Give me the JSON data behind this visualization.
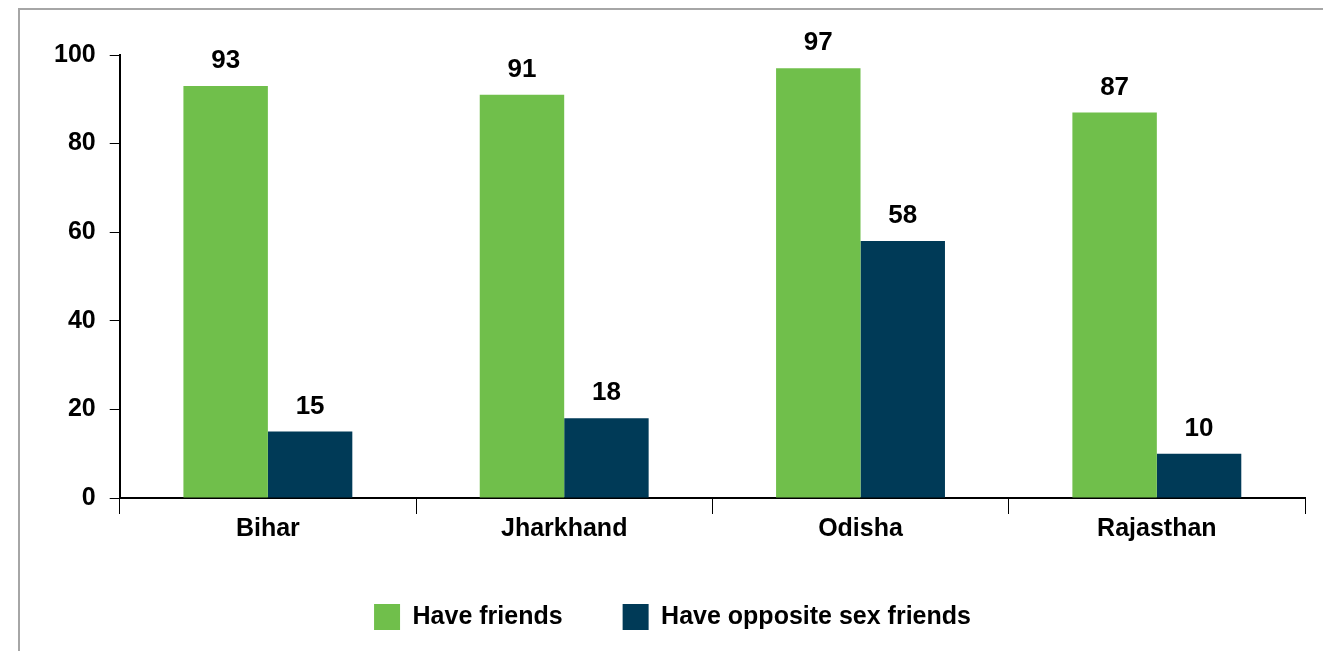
{
  "chart_data": {
    "type": "bar",
    "categories": [
      "Bihar",
      "Jharkhand",
      "Odisha",
      "Rajasthan"
    ],
    "series": [
      {
        "name": "Have friends",
        "color": "#70bf4b",
        "values": [
          93,
          91,
          97,
          87
        ]
      },
      {
        "name": "Have opposite sex friends",
        "color": "#003a57",
        "values": [
          15,
          18,
          58,
          10
        ]
      }
    ],
    "ylim": [
      0,
      100
    ],
    "yticks": [
      0,
      20,
      40,
      60,
      80,
      100
    ],
    "grid": false,
    "legend": "bottom",
    "data_labels": true
  }
}
